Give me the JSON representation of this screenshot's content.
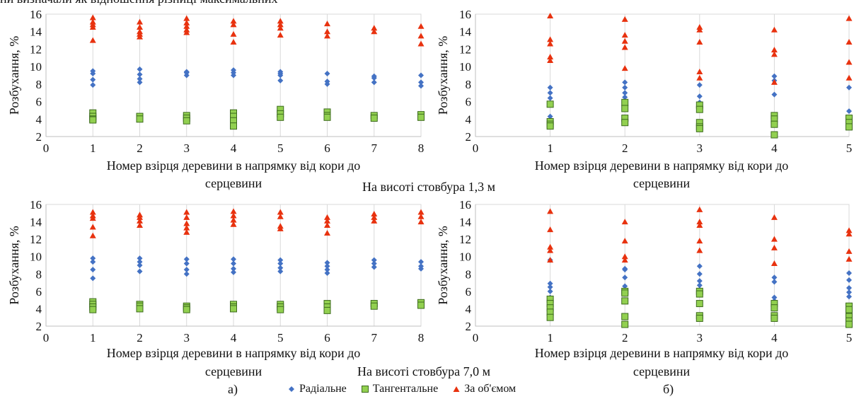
{
  "page": {
    "top_fragment": "ни визначали як відношення різниці максимальних",
    "height_label_1": "На висоті стовбура 1,3 м",
    "height_label_2": "На висоті стовбура 7,0 м",
    "panel_label_a": "а)",
    "panel_label_b": "б)"
  },
  "legend": {
    "radial": "Радіальне",
    "tangential": "Тангентальне",
    "volume": "За об'ємом"
  },
  "colors": {
    "radial": "#4472c4",
    "tangential": "#92d050",
    "tangential_edge": "#3d6b1e",
    "volume": "#e8320f"
  },
  "chart_data": [
    {
      "id": "a_1.3",
      "type": "scatter",
      "xlabel_line1": "Номер взірця деревини в напрямку від кори до",
      "xlabel_line2": "серцевини",
      "ylabel": "Розбухання, %",
      "xlim": [
        0,
        8
      ],
      "ylim": [
        2,
        16
      ],
      "xticks": [
        0,
        1,
        2,
        3,
        4,
        5,
        6,
        7,
        8
      ],
      "yticks": [
        2,
        4,
        6,
        8,
        10,
        12,
        14,
        16
      ],
      "grid": "vertical",
      "series": [
        {
          "name": "Радіальне",
          "x": [
            1,
            1,
            1,
            1,
            2,
            2,
            2,
            2,
            3,
            3,
            3,
            4,
            4,
            4,
            5,
            5,
            5,
            5,
            6,
            6,
            6,
            7,
            7,
            7,
            8,
            8,
            8
          ],
          "y": [
            9.5,
            9.2,
            8.5,
            7.9,
            9.7,
            9.1,
            8.6,
            8.2,
            9.4,
            9.3,
            9.0,
            9.6,
            9.3,
            9.0,
            9.4,
            9.2,
            9.0,
            8.4,
            9.2,
            8.3,
            8.0,
            8.9,
            8.7,
            8.2,
            9.0,
            8.2,
            7.8
          ]
        },
        {
          "name": "Тангентальне",
          "x": [
            1,
            1,
            1,
            1,
            2,
            2,
            3,
            3,
            3,
            4,
            4,
            4,
            4,
            5,
            5,
            5,
            6,
            6,
            6,
            7,
            7,
            8,
            8
          ],
          "y": [
            4.7,
            4.3,
            4.0,
            3.9,
            4.3,
            4.0,
            4.4,
            4.1,
            3.8,
            4.7,
            4.3,
            3.8,
            3.2,
            5.1,
            4.6,
            4.2,
            4.8,
            4.4,
            4.2,
            4.4,
            4.1,
            4.5,
            4.2
          ]
        },
        {
          "name": "За об'ємом",
          "x": [
            1,
            1,
            1,
            1,
            1,
            2,
            2,
            2,
            2,
            2,
            3,
            3,
            3,
            3,
            3,
            4,
            4,
            4,
            4,
            5,
            5,
            5,
            5,
            6,
            6,
            6,
            7,
            7,
            8,
            8,
            8
          ],
          "y": [
            15.6,
            15.1,
            14.8,
            14.5,
            13.0,
            15.1,
            14.5,
            14.0,
            13.7,
            13.4,
            15.5,
            15.0,
            14.6,
            14.2,
            13.9,
            15.2,
            14.8,
            13.7,
            12.8,
            15.2,
            14.8,
            14.4,
            13.6,
            14.9,
            14.0,
            13.5,
            14.4,
            14.0,
            14.6,
            13.5,
            12.6
          ]
        }
      ]
    },
    {
      "id": "b_1.3",
      "type": "scatter",
      "xlabel_line1": "Номер взірця деревини в напрямку від кори до",
      "xlabel_line2": "серцевини",
      "ylabel": "Розбухання, %",
      "xlim": [
        0,
        5
      ],
      "ylim": [
        2,
        16
      ],
      "xticks": [
        0,
        1,
        2,
        3,
        4,
        5
      ],
      "yticks": [
        2,
        4,
        6,
        8,
        10,
        12,
        14,
        16
      ],
      "grid": "vertical",
      "series": [
        {
          "name": "Радіальне",
          "x": [
            1,
            1,
            1,
            1,
            2,
            2,
            2,
            2,
            2,
            3,
            3,
            3,
            3,
            4,
            4,
            4,
            4,
            5,
            5
          ],
          "y": [
            7.6,
            7.0,
            6.4,
            4.3,
            8.2,
            7.6,
            7.0,
            6.5,
            5.8,
            7.9,
            6.6,
            5.9,
            5.3,
            8.9,
            8.4,
            6.8,
            4.3,
            7.6,
            4.9
          ]
        },
        {
          "name": "Тангентальне",
          "x": [
            1,
            1,
            1,
            1,
            2,
            2,
            2,
            2,
            3,
            3,
            3,
            3,
            3,
            4,
            4,
            4,
            4,
            5,
            5,
            5
          ],
          "y": [
            5.7,
            3.7,
            3.4,
            3.2,
            5.9,
            5.2,
            4.1,
            3.6,
            5.6,
            5.1,
            3.6,
            3.1,
            2.9,
            4.4,
            4.0,
            3.4,
            2.2,
            4.1,
            3.6,
            3.1
          ]
        },
        {
          "name": "За об'ємом",
          "x": [
            1,
            1,
            1,
            1,
            1,
            2,
            2,
            2,
            2,
            2,
            3,
            3,
            3,
            3,
            3,
            4,
            4,
            4,
            4,
            5,
            5,
            5,
            5
          ],
          "y": [
            15.8,
            13.1,
            12.6,
            11.1,
            10.7,
            15.4,
            13.6,
            12.9,
            12.2,
            9.8,
            14.5,
            14.2,
            12.8,
            9.4,
            8.7,
            14.2,
            11.9,
            11.4,
            8.2,
            15.5,
            12.8,
            10.5,
            8.7
          ]
        }
      ]
    },
    {
      "id": "a_7.0",
      "type": "scatter",
      "xlabel_line1": "Номер взірця деревини в напрямку від кори до",
      "xlabel_line2": "серцевини",
      "ylabel": "Розбухання, %",
      "xlim": [
        0,
        8
      ],
      "ylim": [
        2,
        16
      ],
      "xticks": [
        0,
        1,
        2,
        3,
        4,
        5,
        6,
        7,
        8
      ],
      "yticks": [
        2,
        4,
        6,
        8,
        10,
        12,
        14,
        16
      ],
      "grid": "vertical",
      "series": [
        {
          "name": "Радіальне",
          "x": [
            1,
            1,
            1,
            1,
            2,
            2,
            2,
            2,
            3,
            3,
            3,
            3,
            4,
            4,
            4,
            4,
            5,
            5,
            5,
            5,
            6,
            6,
            6,
            6,
            7,
            7,
            7,
            8,
            8,
            8
          ],
          "y": [
            9.8,
            9.4,
            8.5,
            7.5,
            9.8,
            9.4,
            9.0,
            8.3,
            9.7,
            9.2,
            8.5,
            8.0,
            9.7,
            9.2,
            8.6,
            8.2,
            9.6,
            9.2,
            8.7,
            8.3,
            9.3,
            8.9,
            8.5,
            8.1,
            9.6,
            9.2,
            8.8,
            9.4,
            8.9,
            8.6
          ]
        },
        {
          "name": "Тангентальне",
          "x": [
            1,
            1,
            1,
            1,
            2,
            2,
            2,
            3,
            3,
            3,
            4,
            4,
            4,
            5,
            5,
            5,
            6,
            6,
            6,
            7,
            7,
            8,
            8
          ],
          "y": [
            4.8,
            4.5,
            4.2,
            3.9,
            4.5,
            4.3,
            4.0,
            4.3,
            4.1,
            3.9,
            4.5,
            4.2,
            4.0,
            4.5,
            4.2,
            3.9,
            4.6,
            4.2,
            3.8,
            4.6,
            4.3,
            4.7,
            4.4
          ]
        },
        {
          "name": "За об'ємом",
          "x": [
            1,
            1,
            1,
            1,
            1,
            2,
            2,
            2,
            2,
            3,
            3,
            3,
            3,
            3,
            4,
            4,
            4,
            4,
            5,
            5,
            5,
            5,
            6,
            6,
            6,
            6,
            7,
            7,
            7,
            8,
            8,
            8
          ],
          "y": [
            15.1,
            14.7,
            14.4,
            13.4,
            12.4,
            14.8,
            14.5,
            14.1,
            13.6,
            15.1,
            14.5,
            13.8,
            13.3,
            12.8,
            15.2,
            14.7,
            14.2,
            13.7,
            15.1,
            14.6,
            13.5,
            13.2,
            14.5,
            14.1,
            13.6,
            12.7,
            14.9,
            14.5,
            14.1,
            15.1,
            14.6,
            14.0
          ]
        }
      ]
    },
    {
      "id": "b_7.0",
      "type": "scatter",
      "xlabel_line1": "Номер взірця деревини в напрямку від кори до",
      "xlabel_line2": "серцевини",
      "ylabel": "Розбухання, %",
      "xlim": [
        0,
        5
      ],
      "ylim": [
        2,
        16
      ],
      "xticks": [
        0,
        1,
        2,
        3,
        4,
        5
      ],
      "yticks": [
        2,
        4,
        6,
        8,
        10,
        12,
        14,
        16
      ],
      "grid": "vertical",
      "series": [
        {
          "name": "Радіальне",
          "x": [
            1,
            1,
            1,
            1,
            1,
            2,
            2,
            2,
            2,
            2,
            3,
            3,
            3,
            3,
            3,
            3,
            4,
            4,
            4,
            4,
            5,
            5,
            5,
            5,
            5
          ],
          "y": [
            9.6,
            6.9,
            6.5,
            6.0,
            5.3,
            8.6,
            8.5,
            7.6,
            6.6,
            5.9,
            8.9,
            8.0,
            7.2,
            6.7,
            6.2,
            5.6,
            7.6,
            7.1,
            5.3,
            4.9,
            8.1,
            7.3,
            6.4,
            5.9,
            5.4
          ]
        },
        {
          "name": "Тангентальне",
          "x": [
            1,
            1,
            1,
            1,
            1,
            2,
            2,
            2,
            2,
            2,
            3,
            3,
            3,
            3,
            3,
            4,
            4,
            4,
            4,
            5,
            5,
            5,
            5,
            5
          ],
          "y": [
            5.1,
            4.6,
            4.1,
            3.6,
            3.0,
            6.0,
            5.8,
            4.9,
            3.1,
            2.2,
            6.0,
            5.7,
            4.6,
            3.2,
            2.9,
            4.6,
            4.1,
            3.2,
            2.9,
            4.3,
            3.9,
            3.1,
            2.6,
            2.2
          ]
        },
        {
          "name": "За об'ємом",
          "x": [
            1,
            1,
            1,
            1,
            1,
            2,
            2,
            2,
            2,
            3,
            3,
            3,
            3,
            3,
            4,
            4,
            4,
            4,
            5,
            5,
            5,
            5
          ],
          "y": [
            15.2,
            13.1,
            11.1,
            10.7,
            9.6,
            14.0,
            11.8,
            10.0,
            9.6,
            15.4,
            14.0,
            13.6,
            11.8,
            10.7,
            14.5,
            12.0,
            11.0,
            9.2,
            13.0,
            12.6,
            10.6,
            9.7
          ]
        }
      ]
    }
  ]
}
